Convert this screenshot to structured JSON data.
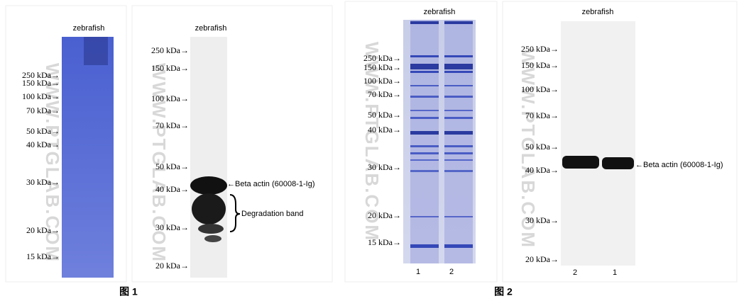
{
  "panels": [
    {
      "title": "zebrafish",
      "markers": [
        "250 kDa→",
        "150 kDa→",
        "100 kDa→",
        "70 kDa→",
        "50 kDa→",
        "40 kDa→",
        "30 kDa→",
        "20 kDa→",
        "15 kDa→"
      ]
    },
    {
      "title": "zebrafish",
      "markers": [
        "250 kDa→",
        "150 kDa→",
        "100 kDa→",
        "70 kDa→",
        "50 kDa→",
        "40 kDa→",
        "30 kDa→",
        "20 kDa→"
      ],
      "annotations": [
        "←Beta actin (60008-1-Ig)",
        "Degradation band"
      ]
    },
    {
      "title": "zebrafish",
      "markers": [
        "250 kDa→",
        "150 kDa→",
        "100 kDa→",
        "70 kDa→",
        "50 kDa→",
        "40 kDa→",
        "30 kDa→",
        "20 kDa→",
        "15 kDa→"
      ],
      "lanes": [
        "1",
        "2"
      ]
    },
    {
      "title": "zebrafish",
      "markers": [
        "250 kDa→",
        "150 kDa→",
        "100 kDa→",
        "70 kDa→",
        "50 kDa→",
        "40 kDa→",
        "30 kDa→",
        "20 kDa→"
      ],
      "lanes": [
        "2",
        "1"
      ],
      "annotations": [
        "←Beta actin (60008-1-Ig)"
      ]
    }
  ],
  "watermark": "WWW.PTGLAB.COM",
  "captions": [
    "图 1",
    "图 2"
  ]
}
